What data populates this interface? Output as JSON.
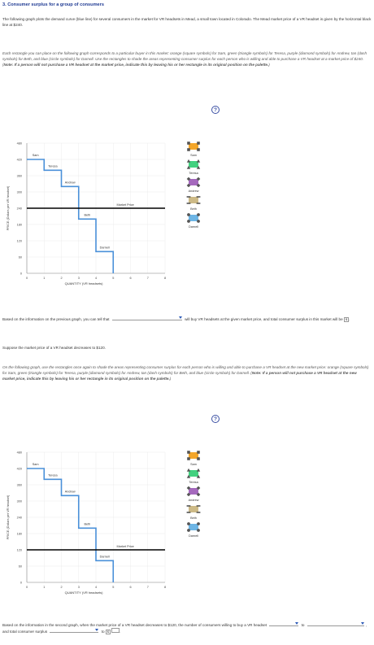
{
  "title": "3. Consumer surplus for a group of consumers",
  "intro": "The following graph plots the demand curve (blue line) for several consumers in the market for VR headsets in Mead, a small town located in Colorado. The Mead market price of a VR headset is given by the horizontal black line at $240.",
  "instructions1_pre": "Each rectangle you can place on the following graph corresponds to a particular buyer in this market: orange (square symbols) for Sam, green (triangle symbols) for Teresa, purple (diamond symbols) for Andrew, tan (dash symbols) for Beth, and blue (circle symbols) for Darnell. Use the rectangles to shade the areas representing consumer surplus for each person who is willing and able to purchase a VR headset at a market price of $240. (",
  "instructions1_note": "Note: If a person will not purchase a VR headset at the market price, indicate this by leaving his or her rectangle in its original position on the palette.",
  "instructions_close": ")",
  "help_glyph": "?",
  "price_change": "Suppose the market price of a VR headset decreases to $120.",
  "instructions2_pre": "On the following graph, use the rectangles once again to shade the areas representing consumer surplus for each person who is willing and able to purchase a VR headset at the new market price: orange (square symbols) for Sam, green (triangle symbols) for Teresa, purple (diamond symbols) for Andrew, tan (dash symbols) for Beth, and blue (circle symbols) for Darnell. (",
  "instructions2_note": "Note: If a person will not purchase a VR headset at the new market price, indicate this by leaving his or her rectangle in its original position on the palette.",
  "q1_pre": "Based on the information on the previous graph, you can tell that",
  "q1_post": "will buy VR headsets at the given market price, and total consumer surplus in this market will be",
  "q2_pre": "Based on the information in the second graph, when the market price of a VR headset decreases to $120, the number of consumers willing to buy a VR headset",
  "q2_to": "to",
  "q2_mid": ", and total consumer surplus",
  "q2_to2": "to",
  "dollar": "$",
  "q1_end": ".",
  "q2_end": ".",
  "palette": {
    "items": [
      {
        "name": "Sam",
        "color": "#f39c12",
        "shape": "square"
      },
      {
        "name": "Teresa",
        "color": "#2ecc71",
        "shape": "triangle"
      },
      {
        "name": "Andrew",
        "color": "#9b59b6",
        "shape": "diamond"
      },
      {
        "name": "Beth",
        "color": "#c8b27a",
        "shape": "dash"
      },
      {
        "name": "Darnell",
        "color": "#5dade2",
        "shape": "circle"
      }
    ]
  },
  "chart_data": [
    {
      "type": "line",
      "xlabel": "QUANTITY (VR headsets)",
      "ylabel": "PRICE (Dollars per VR headset)",
      "x_ticks": [
        "0",
        "1",
        "2",
        "3",
        "4",
        "5",
        "6",
        "7",
        "8"
      ],
      "y_ticks": [
        "0",
        "60",
        "120",
        "180",
        "240",
        "300",
        "360",
        "420",
        "480"
      ],
      "xlim": [
        0,
        8
      ],
      "ylim": [
        0,
        480
      ],
      "demand_steps": [
        {
          "label": "Sam",
          "q_from": 0,
          "q_to": 1,
          "price": 420
        },
        {
          "label": "Teresa",
          "q_from": 1,
          "q_to": 2,
          "price": 380
        },
        {
          "label": "Andrew",
          "q_from": 2,
          "q_to": 3,
          "price": 320
        },
        {
          "label": "Beth",
          "q_from": 3,
          "q_to": 4,
          "price": 200
        },
        {
          "label": "Darnell",
          "q_from": 4,
          "q_to": 5,
          "price": 80
        }
      ],
      "market_price": 240,
      "market_price_label": "Market Price",
      "colors": {
        "demand": "#4a90d9",
        "market": "#000000"
      }
    },
    {
      "type": "line",
      "xlabel": "QUANTITY (VR headsets)",
      "ylabel": "PRICE (Dollars per VR headset)",
      "x_ticks": [
        "0",
        "1",
        "2",
        "3",
        "4",
        "5",
        "6",
        "7",
        "8"
      ],
      "y_ticks": [
        "0",
        "60",
        "120",
        "180",
        "240",
        "300",
        "360",
        "420",
        "480"
      ],
      "xlim": [
        0,
        8
      ],
      "ylim": [
        0,
        480
      ],
      "demand_steps": [
        {
          "label": "Sam",
          "q_from": 0,
          "q_to": 1,
          "price": 420
        },
        {
          "label": "Teresa",
          "q_from": 1,
          "q_to": 2,
          "price": 380
        },
        {
          "label": "Andrew",
          "q_from": 2,
          "q_to": 3,
          "price": 320
        },
        {
          "label": "Beth",
          "q_from": 3,
          "q_to": 4,
          "price": 200
        },
        {
          "label": "Darnell",
          "q_from": 4,
          "q_to": 5,
          "price": 80
        }
      ],
      "market_price": 120,
      "market_price_label": "Market Price",
      "colors": {
        "demand": "#4a90d9",
        "market": "#000000"
      }
    }
  ]
}
